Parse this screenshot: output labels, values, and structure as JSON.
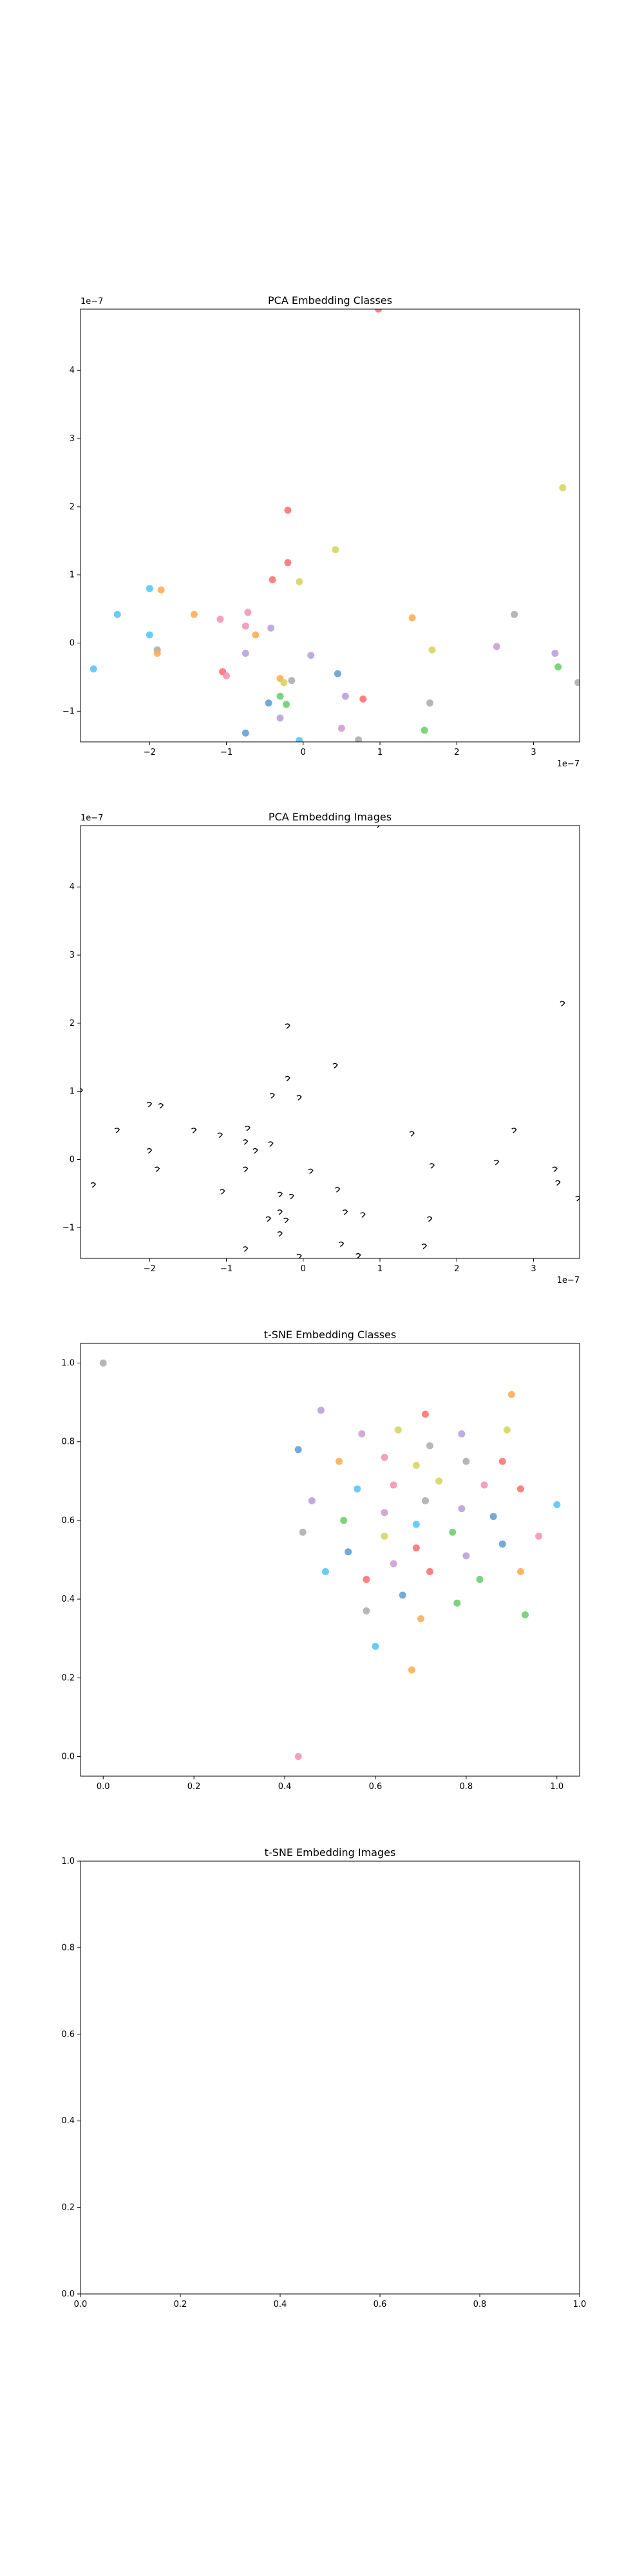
{
  "colors": [
    "#ff6b6b",
    "#4fc3f7",
    "#b39ddb",
    "#ffa94d",
    "#66cc66",
    "#d4d45a",
    "#f48fb1",
    "#5b9bd5",
    "#a9a9a9",
    "#cc99cc"
  ],
  "chart_data": [
    {
      "type": "scatter",
      "title": "PCA Embedding Classes",
      "xlim": [
        -2.9,
        3.6
      ],
      "ylim": [
        -1.45,
        4.9
      ],
      "xticks": [
        -2,
        -1,
        0,
        1,
        2,
        3
      ],
      "xtick_labels": [
        "−2",
        "−1",
        "0",
        "1",
        "2",
        "3"
      ],
      "yticks": [
        -1,
        0,
        1,
        2,
        3,
        4
      ],
      "ytick_labels": [
        "−1",
        "0",
        "1",
        "2",
        "3",
        "4"
      ],
      "x_offset": "1e−7",
      "y_offset": "1e−7",
      "points": [
        {
          "x": -0.2,
          "y": 1.95,
          "c": 0
        },
        {
          "x": -0.2,
          "y": 1.18,
          "c": 0
        },
        {
          "x": -0.4,
          "y": 0.93,
          "c": 0
        },
        {
          "x": -0.05,
          "y": 0.9,
          "c": 5
        },
        {
          "x": 0.42,
          "y": 1.37,
          "c": 5
        },
        {
          "x": 3.38,
          "y": 2.28,
          "c": 5
        },
        {
          "x": -2.0,
          "y": 0.8,
          "c": 1
        },
        {
          "x": -1.85,
          "y": 0.78,
          "c": 3
        },
        {
          "x": -2.42,
          "y": 0.42,
          "c": 1
        },
        {
          "x": -1.42,
          "y": 0.42,
          "c": 3
        },
        {
          "x": -1.08,
          "y": 0.35,
          "c": 6
        },
        {
          "x": -0.72,
          "y": 0.45,
          "c": 6
        },
        {
          "x": -0.75,
          "y": 0.25,
          "c": 6
        },
        {
          "x": -0.62,
          "y": 0.12,
          "c": 3
        },
        {
          "x": -0.42,
          "y": 0.22,
          "c": 2
        },
        {
          "x": -2.0,
          "y": 0.12,
          "c": 1
        },
        {
          "x": -1.9,
          "y": -0.1,
          "c": 8
        },
        {
          "x": -1.9,
          "y": -0.15,
          "c": 3
        },
        {
          "x": -2.73,
          "y": -0.38,
          "c": 1
        },
        {
          "x": -1.05,
          "y": -0.42,
          "c": 0
        },
        {
          "x": -1.0,
          "y": -0.48,
          "c": 6
        },
        {
          "x": -0.75,
          "y": -0.15,
          "c": 2
        },
        {
          "x": 0.1,
          "y": -0.18,
          "c": 2
        },
        {
          "x": -0.3,
          "y": -0.52,
          "c": 3
        },
        {
          "x": -0.25,
          "y": -0.58,
          "c": 5
        },
        {
          "x": -0.15,
          "y": -0.55,
          "c": 8
        },
        {
          "x": -0.45,
          "y": -0.88,
          "c": 7
        },
        {
          "x": -0.3,
          "y": -0.78,
          "c": 4
        },
        {
          "x": -0.22,
          "y": -0.9,
          "c": 4
        },
        {
          "x": -0.3,
          "y": -1.1,
          "c": 2
        },
        {
          "x": -0.75,
          "y": -1.32,
          "c": 7
        },
        {
          "x": -0.05,
          "y": -1.43,
          "c": 1
        },
        {
          "x": 0.45,
          "y": -0.45,
          "c": 7
        },
        {
          "x": 0.55,
          "y": -0.78,
          "c": 2
        },
        {
          "x": 0.78,
          "y": -0.82,
          "c": 0
        },
        {
          "x": 0.5,
          "y": -1.25,
          "c": 9
        },
        {
          "x": 0.72,
          "y": -1.42,
          "c": 8
        },
        {
          "x": 0.98,
          "y": 4.9,
          "c": 0
        },
        {
          "x": 1.42,
          "y": 0.37,
          "c": 3
        },
        {
          "x": 1.68,
          "y": -0.1,
          "c": 5
        },
        {
          "x": 1.65,
          "y": -0.88,
          "c": 8
        },
        {
          "x": 1.58,
          "y": -1.28,
          "c": 4
        },
        {
          "x": 2.52,
          "y": -0.05,
          "c": 9
        },
        {
          "x": 2.75,
          "y": 0.42,
          "c": 8
        },
        {
          "x": 3.28,
          "y": -0.15,
          "c": 2
        },
        {
          "x": 3.32,
          "y": -0.35,
          "c": 4
        },
        {
          "x": 3.58,
          "y": -0.58,
          "c": 8
        }
      ]
    },
    {
      "type": "scatter",
      "title": "PCA Embedding Images",
      "xlim": [
        -2.9,
        3.6
      ],
      "ylim": [
        -1.45,
        4.9
      ],
      "xticks": [
        -2,
        -1,
        0,
        1,
        2,
        3
      ],
      "xtick_labels": [
        "−2",
        "−1",
        "0",
        "1",
        "2",
        "3"
      ],
      "yticks": [
        -1,
        0,
        1,
        2,
        3,
        4
      ],
      "ytick_labels": [
        "−1",
        "0",
        "1",
        "2",
        "3",
        "4"
      ],
      "x_offset": "1e−7",
      "y_offset": "1e−7",
      "points": [
        {
          "x": -0.2,
          "y": 1.95
        },
        {
          "x": -0.2,
          "y": 1.18
        },
        {
          "x": -0.4,
          "y": 0.93
        },
        {
          "x": -0.05,
          "y": 0.9
        },
        {
          "x": 0.42,
          "y": 1.37
        },
        {
          "x": 3.38,
          "y": 2.28
        },
        {
          "x": -2.0,
          "y": 0.8
        },
        {
          "x": -1.85,
          "y": 0.78
        },
        {
          "x": -2.42,
          "y": 0.42
        },
        {
          "x": -1.42,
          "y": 0.42
        },
        {
          "x": -1.08,
          "y": 0.35
        },
        {
          "x": -0.72,
          "y": 0.45
        },
        {
          "x": -0.75,
          "y": 0.25
        },
        {
          "x": -0.62,
          "y": 0.12
        },
        {
          "x": -0.42,
          "y": 0.22
        },
        {
          "x": -2.0,
          "y": 0.12
        },
        {
          "x": -1.9,
          "y": -0.15
        },
        {
          "x": -2.73,
          "y": -0.38
        },
        {
          "x": -1.05,
          "y": -0.48
        },
        {
          "x": -0.75,
          "y": -0.15
        },
        {
          "x": 0.1,
          "y": -0.18
        },
        {
          "x": -0.3,
          "y": -0.52
        },
        {
          "x": -0.15,
          "y": -0.55
        },
        {
          "x": -0.45,
          "y": -0.88
        },
        {
          "x": -0.3,
          "y": -0.78
        },
        {
          "x": -0.22,
          "y": -0.9
        },
        {
          "x": -0.3,
          "y": -1.1
        },
        {
          "x": -0.75,
          "y": -1.32
        },
        {
          "x": -0.05,
          "y": -1.43
        },
        {
          "x": 0.45,
          "y": -0.45
        },
        {
          "x": 0.55,
          "y": -0.78
        },
        {
          "x": 0.78,
          "y": -0.82
        },
        {
          "x": 0.5,
          "y": -1.25
        },
        {
          "x": 0.72,
          "y": -1.42
        },
        {
          "x": 0.98,
          "y": 4.9
        },
        {
          "x": 1.42,
          "y": 0.37
        },
        {
          "x": 1.68,
          "y": -0.1
        },
        {
          "x": 1.65,
          "y": -0.88
        },
        {
          "x": 1.58,
          "y": -1.28
        },
        {
          "x": 2.52,
          "y": -0.05
        },
        {
          "x": 2.75,
          "y": 0.42
        },
        {
          "x": 3.28,
          "y": -0.15
        },
        {
          "x": 3.32,
          "y": -0.35
        },
        {
          "x": 3.58,
          "y": -0.58
        },
        {
          "x": -2.9,
          "y": 1.0
        }
      ]
    },
    {
      "type": "scatter",
      "title": "t-SNE Embedding Classes",
      "xlim": [
        -0.05,
        1.05
      ],
      "ylim": [
        -0.05,
        1.05
      ],
      "xticks": [
        0,
        0.2,
        0.4,
        0.6,
        0.8,
        1.0
      ],
      "xtick_labels": [
        "0.0",
        "0.2",
        "0.4",
        "0.6",
        "0.8",
        "1.0"
      ],
      "yticks": [
        0,
        0.2,
        0.4,
        0.6,
        0.8,
        1.0
      ],
      "ytick_labels": [
        "0.0",
        "0.2",
        "0.4",
        "0.6",
        "0.8",
        "1.0"
      ],
      "points": [
        {
          "x": 0.0,
          "y": 1.0,
          "c": 8
        },
        {
          "x": 0.43,
          "y": 0.0,
          "c": 6
        },
        {
          "x": 0.48,
          "y": 0.88,
          "c": 2
        },
        {
          "x": 0.9,
          "y": 0.92,
          "c": 3
        },
        {
          "x": 0.71,
          "y": 0.87,
          "c": 0
        },
        {
          "x": 0.65,
          "y": 0.83,
          "c": 5
        },
        {
          "x": 0.57,
          "y": 0.82,
          "c": 9
        },
        {
          "x": 0.79,
          "y": 0.82,
          "c": 2
        },
        {
          "x": 0.89,
          "y": 0.83,
          "c": 5
        },
        {
          "x": 0.43,
          "y": 0.78,
          "c": 7
        },
        {
          "x": 0.52,
          "y": 0.75,
          "c": 3
        },
        {
          "x": 0.62,
          "y": 0.76,
          "c": 6
        },
        {
          "x": 0.69,
          "y": 0.74,
          "c": 5
        },
        {
          "x": 0.72,
          "y": 0.79,
          "c": 8
        },
        {
          "x": 0.8,
          "y": 0.75,
          "c": 8
        },
        {
          "x": 0.88,
          "y": 0.75,
          "c": 0
        },
        {
          "x": 0.56,
          "y": 0.68,
          "c": 1
        },
        {
          "x": 0.64,
          "y": 0.69,
          "c": 6
        },
        {
          "x": 0.74,
          "y": 0.7,
          "c": 5
        },
        {
          "x": 0.84,
          "y": 0.69,
          "c": 6
        },
        {
          "x": 0.92,
          "y": 0.68,
          "c": 0
        },
        {
          "x": 0.46,
          "y": 0.65,
          "c": 2
        },
        {
          "x": 0.62,
          "y": 0.62,
          "c": 9
        },
        {
          "x": 0.71,
          "y": 0.65,
          "c": 8
        },
        {
          "x": 0.79,
          "y": 0.63,
          "c": 2
        },
        {
          "x": 0.86,
          "y": 0.61,
          "c": 7
        },
        {
          "x": 1.0,
          "y": 0.64,
          "c": 1
        },
        {
          "x": 0.53,
          "y": 0.6,
          "c": 4
        },
        {
          "x": 0.69,
          "y": 0.59,
          "c": 1
        },
        {
          "x": 0.77,
          "y": 0.57,
          "c": 4
        },
        {
          "x": 0.44,
          "y": 0.57,
          "c": 8
        },
        {
          "x": 0.62,
          "y": 0.56,
          "c": 5
        },
        {
          "x": 0.88,
          "y": 0.54,
          "c": 7
        },
        {
          "x": 0.96,
          "y": 0.56,
          "c": 6
        },
        {
          "x": 0.54,
          "y": 0.52,
          "c": 7
        },
        {
          "x": 0.69,
          "y": 0.53,
          "c": 0
        },
        {
          "x": 0.8,
          "y": 0.51,
          "c": 2
        },
        {
          "x": 0.49,
          "y": 0.47,
          "c": 1
        },
        {
          "x": 0.64,
          "y": 0.49,
          "c": 9
        },
        {
          "x": 0.72,
          "y": 0.47,
          "c": 0
        },
        {
          "x": 0.92,
          "y": 0.47,
          "c": 3
        },
        {
          "x": 0.58,
          "y": 0.45,
          "c": 0
        },
        {
          "x": 0.83,
          "y": 0.45,
          "c": 4
        },
        {
          "x": 0.66,
          "y": 0.41,
          "c": 7
        },
        {
          "x": 0.78,
          "y": 0.39,
          "c": 4
        },
        {
          "x": 0.58,
          "y": 0.37,
          "c": 8
        },
        {
          "x": 0.93,
          "y": 0.36,
          "c": 4
        },
        {
          "x": 0.7,
          "y": 0.35,
          "c": 3
        },
        {
          "x": 0.6,
          "y": 0.28,
          "c": 1
        },
        {
          "x": 0.68,
          "y": 0.22,
          "c": 3
        }
      ]
    },
    {
      "type": "scatter",
      "title": "t-SNE Embedding Images",
      "xlim": [
        0,
        1.0
      ],
      "ylim": [
        0,
        1.0
      ],
      "xticks": [
        0,
        0.2,
        0.4,
        0.6,
        0.8,
        1.0
      ],
      "xtick_labels": [
        "0.0",
        "0.2",
        "0.4",
        "0.6",
        "0.8",
        "1.0"
      ],
      "yticks": [
        0,
        0.2,
        0.4,
        0.6,
        0.8,
        1.0
      ],
      "ytick_labels": [
        "0.0",
        "0.2",
        "0.4",
        "0.6",
        "0.8",
        "1.0"
      ],
      "points": []
    }
  ]
}
